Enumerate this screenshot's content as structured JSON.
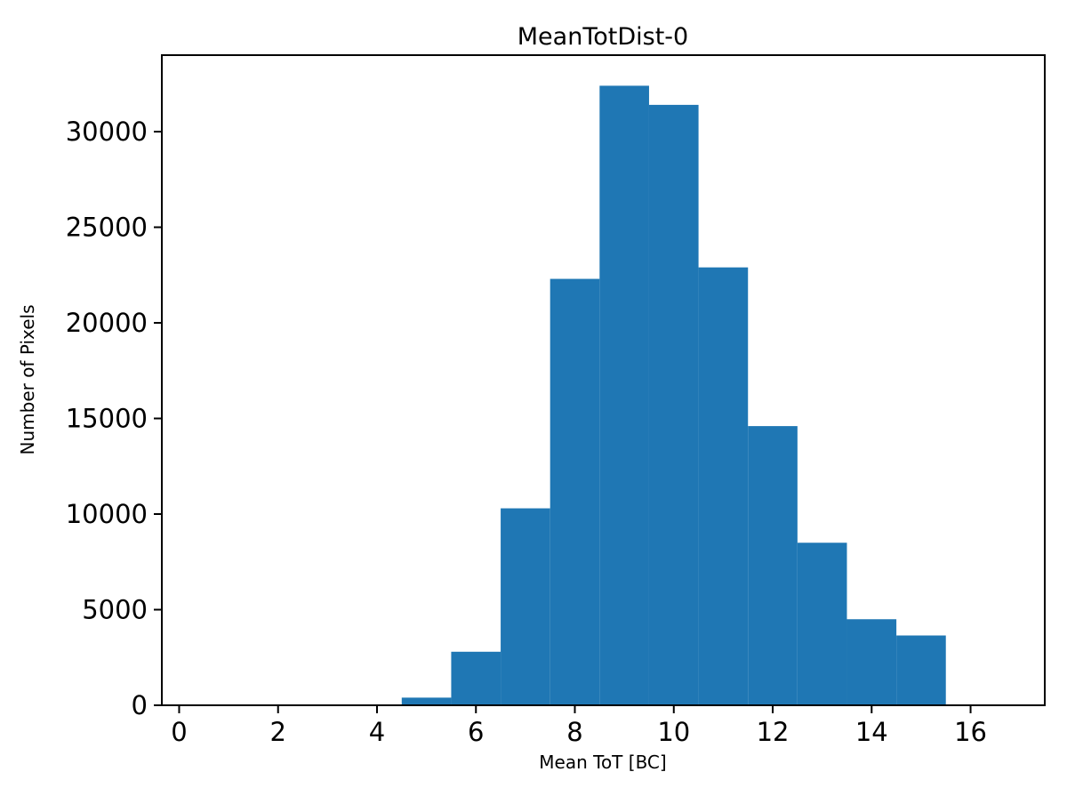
{
  "chart_data": {
    "type": "bar",
    "subtype": "histogram",
    "title": "MeanTotDist-0",
    "xlabel": "Mean ToT [BC]",
    "ylabel": "Number of Pixels",
    "bar_color": "#1f77b4",
    "bin_edges": [
      3.5,
      4.5,
      5.5,
      6.5,
      7.5,
      8.5,
      9.5,
      10.5,
      11.5,
      12.5,
      13.5,
      14.5,
      15.5
    ],
    "values": [
      30,
      400,
      2800,
      10300,
      22300,
      32400,
      31400,
      22900,
      14600,
      8500,
      4500,
      3650
    ],
    "xlim": [
      -0.35,
      17.5
    ],
    "ylim": [
      0,
      34000
    ],
    "xticks": [
      0,
      2,
      4,
      6,
      8,
      10,
      12,
      14,
      16
    ],
    "yticks": [
      0,
      5000,
      10000,
      15000,
      20000,
      25000,
      30000
    ],
    "grid": false,
    "legend": null,
    "axis_color": "#000000",
    "background_color": "#ffffff"
  }
}
